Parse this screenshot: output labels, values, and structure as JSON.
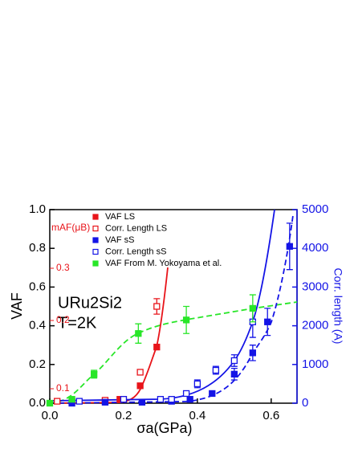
{
  "chart_data": {
    "type": "scatter",
    "xlabel": "σa(GPa)",
    "ylabel": "VAF",
    "y2label": "Corr. length (A)",
    "annotations": [
      "URu2Si2",
      "T=2K",
      "mAF(μB)"
    ],
    "m_ticks": [
      "0.1",
      "0.2",
      "0.3"
    ],
    "xlim": [
      0,
      0.67
    ],
    "ylim": [
      0,
      1
    ],
    "y2lim": [
      0,
      5000
    ],
    "xticks": [
      {
        "value": 0,
        "label": "0.0"
      },
      0.2,
      0.4,
      0.6
    ],
    "yticks": [
      {
        "value": 0,
        "label": "0.0"
      },
      0.2,
      0.4,
      0.6,
      0.8,
      {
        "value": 1,
        "label": "1.0"
      }
    ],
    "y2ticks": [
      0,
      1000,
      2000,
      3000,
      4000,
      5000
    ],
    "series": [
      {
        "name": "VAF LS",
        "color": "#e8141a",
        "marker": "filled",
        "x": [
          0.15,
          0.19,
          0.245,
          0.29
        ],
        "values": [
          0.01,
          0.02,
          0.09,
          0.29
        ],
        "errors": [
          null,
          null,
          null,
          null
        ]
      },
      {
        "name": "Corr. Length LS",
        "color": "#e8141a",
        "marker": "open",
        "axis": "y2",
        "x": [
          0.02,
          0.06,
          0.15,
          0.2,
          0.245,
          0.29
        ],
        "values": [
          50,
          50,
          75,
          100,
          800,
          2500
        ],
        "errors": [
          null,
          null,
          null,
          null,
          null,
          200
        ]
      },
      {
        "name": "VAF sS",
        "color": "#1414e6",
        "marker": "filled",
        "x": [
          0.06,
          0.15,
          0.25,
          0.33,
          0.38,
          0.44,
          0.5,
          0.55,
          0.59,
          0.65
        ],
        "values": [
          0,
          0.005,
          0.005,
          0.01,
          0.02,
          0.05,
          0.15,
          0.26,
          0.42,
          0.81
        ],
        "errors": [
          null,
          null,
          null,
          null,
          null,
          null,
          0.03,
          0.04,
          0.07,
          0.12
        ]
      },
      {
        "name": "Corr. Length sS",
        "color": "#1414e6",
        "marker": "open",
        "axis": "y2",
        "x": [
          0.08,
          0.2,
          0.3,
          0.33,
          0.37,
          0.4,
          0.45,
          0.5,
          0.55
        ],
        "values": [
          50,
          100,
          100,
          100,
          250,
          500,
          850,
          1100,
          2100
        ],
        "errors": [
          null,
          null,
          null,
          null,
          null,
          100,
          100,
          150,
          400
        ]
      },
      {
        "name": "VAF From M. Yokoyama et al.",
        "color": "#28e628",
        "marker": "filled",
        "x": [
          0,
          0.06,
          0.12,
          0.24,
          0.37,
          0.55
        ],
        "values": [
          0,
          0.02,
          0.15,
          0.36,
          0.43,
          0.49
        ],
        "errors": [
          null,
          null,
          0.02,
          0.05,
          0.07,
          0.07
        ]
      }
    ]
  }
}
